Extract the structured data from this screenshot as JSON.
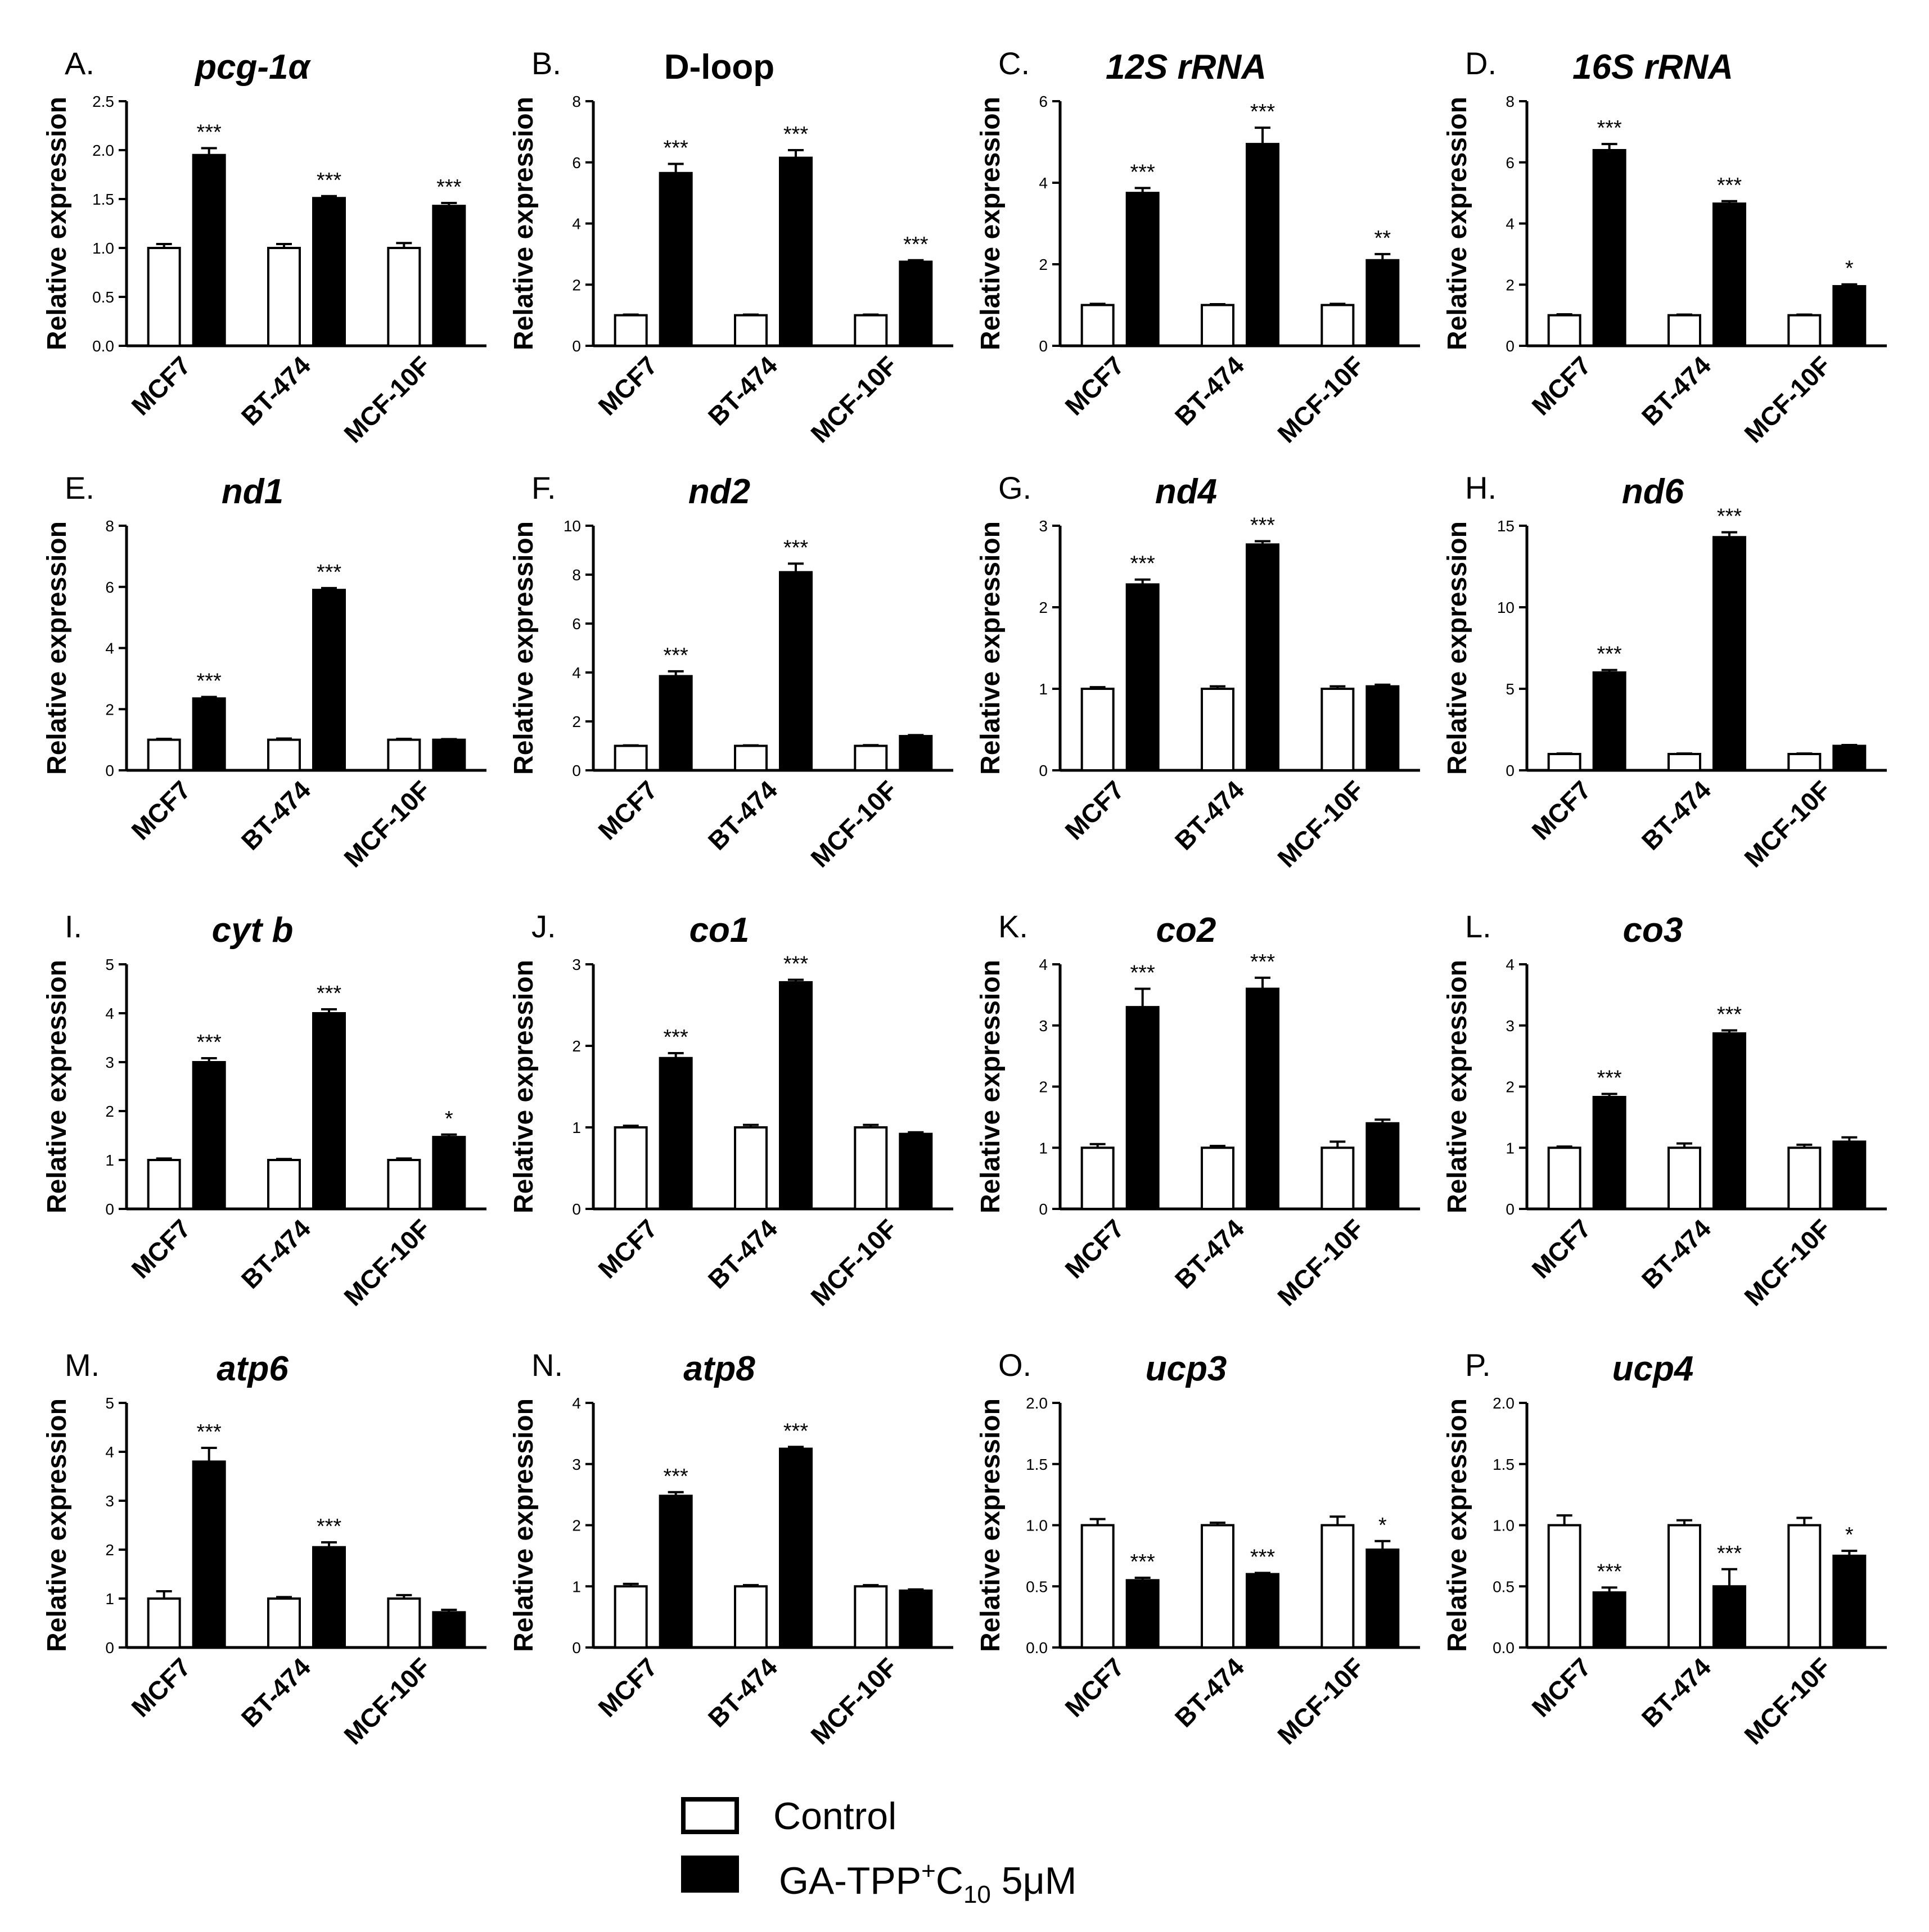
{
  "figure": {
    "legend": {
      "control_label": "Control",
      "treated_prefix": "GA-TPP",
      "treated_sup": "+",
      "treated_mid": "C",
      "treated_sub": "10",
      "treated_suffix": " 5μM"
    }
  },
  "chart_data": [
    {
      "type": "bar",
      "panel": "A.",
      "title": "pcg-1α",
      "title_italic": true,
      "ylabel": "Relative expression",
      "ylim": [
        0,
        2.5
      ],
      "ticks": [
        "0.0",
        "0.5",
        "1.0",
        "1.5",
        "2.0",
        "2.5"
      ],
      "categories": [
        "MCF7",
        "BT-474",
        "MCF-10F"
      ],
      "series": [
        {
          "name": "Control",
          "values": [
            1.0,
            1.0,
            1.0
          ],
          "errors": [
            0.04,
            0.04,
            0.05
          ]
        },
        {
          "name": "GA-TPP+C10 5μM",
          "values": [
            1.95,
            1.51,
            1.43
          ],
          "errors": [
            0.07,
            0.02,
            0.03
          ]
        }
      ],
      "significance": [
        "***",
        "***",
        "***"
      ]
    },
    {
      "type": "bar",
      "panel": "B.",
      "title": "D-loop",
      "title_italic": false,
      "ylabel": "Relative expression",
      "ylim": [
        0,
        8
      ],
      "ticks": [
        "0",
        "2",
        "4",
        "6",
        "8"
      ],
      "categories": [
        "MCF7",
        "BT-474",
        "MCF-10F"
      ],
      "series": [
        {
          "name": "Control",
          "values": [
            1.0,
            1.0,
            1.0
          ],
          "errors": [
            0.02,
            0.02,
            0.02
          ]
        },
        {
          "name": "GA-TPP+C10 5μM",
          "values": [
            5.65,
            6.15,
            2.75
          ],
          "errors": [
            0.3,
            0.25,
            0.05
          ]
        }
      ],
      "significance": [
        "***",
        "***",
        "***"
      ]
    },
    {
      "type": "bar",
      "panel": "C.",
      "title": "12S rRNA",
      "title_italic": true,
      "ylabel": "Relative expression",
      "ylim": [
        0,
        6
      ],
      "ticks": [
        "0",
        "2",
        "4",
        "6"
      ],
      "categories": [
        "MCF7",
        "BT-474",
        "MCF-10F"
      ],
      "series": [
        {
          "name": "Control",
          "values": [
            1.0,
            1.0,
            1.0
          ],
          "errors": [
            0.03,
            0.02,
            0.03
          ]
        },
        {
          "name": "GA-TPP+C10 5μM",
          "values": [
            3.75,
            4.95,
            2.1
          ],
          "errors": [
            0.12,
            0.4,
            0.15
          ]
        }
      ],
      "significance": [
        "***",
        "***",
        "**"
      ]
    },
    {
      "type": "bar",
      "panel": "D.",
      "title": "16S rRNA",
      "title_italic": true,
      "ylabel": "Relative expression",
      "ylim": [
        0,
        8
      ],
      "ticks": [
        "0",
        "2",
        "4",
        "6",
        "8"
      ],
      "categories": [
        "MCF7",
        "BT-474",
        "MCF-10F"
      ],
      "series": [
        {
          "name": "Control",
          "values": [
            1.0,
            1.0,
            1.0
          ],
          "errors": [
            0.03,
            0.02,
            0.02
          ]
        },
        {
          "name": "GA-TPP+C10 5μM",
          "values": [
            6.4,
            4.65,
            1.95
          ],
          "errors": [
            0.2,
            0.08,
            0.06
          ]
        }
      ],
      "significance": [
        "***",
        "***",
        "*"
      ]
    },
    {
      "type": "bar",
      "panel": "E.",
      "title": "nd1",
      "title_italic": true,
      "ylabel": "Relative expression",
      "ylim": [
        0,
        8
      ],
      "ticks": [
        "0",
        "2",
        "4",
        "6",
        "8"
      ],
      "categories": [
        "MCF7",
        "BT-474",
        "MCF-10F"
      ],
      "series": [
        {
          "name": "Control",
          "values": [
            1.0,
            1.0,
            1.0
          ],
          "errors": [
            0.03,
            0.04,
            0.03
          ]
        },
        {
          "name": "GA-TPP+C10 5μM",
          "values": [
            2.35,
            5.9,
            1.0
          ],
          "errors": [
            0.05,
            0.06,
            0.02
          ]
        }
      ],
      "significance": [
        "***",
        "***",
        ""
      ]
    },
    {
      "type": "bar",
      "panel": "F.",
      "title": "nd2",
      "title_italic": true,
      "ylabel": "Relative expression",
      "ylim": [
        0,
        10
      ],
      "ticks": [
        "0",
        "2",
        "4",
        "6",
        "8",
        "10"
      ],
      "categories": [
        "MCF7",
        "BT-474",
        "MCF-10F"
      ],
      "series": [
        {
          "name": "Control",
          "values": [
            1.0,
            1.0,
            1.0
          ],
          "errors": [
            0.02,
            0.02,
            0.03
          ]
        },
        {
          "name": "GA-TPP+C10 5μM",
          "values": [
            3.85,
            8.1,
            1.4
          ],
          "errors": [
            0.2,
            0.35,
            0.04
          ]
        }
      ],
      "significance": [
        "***",
        "***",
        ""
      ]
    },
    {
      "type": "bar",
      "panel": "G.",
      "title": "nd4",
      "title_italic": true,
      "ylabel": "Relative expression",
      "ylim": [
        0,
        3
      ],
      "ticks": [
        "0",
        "1",
        "2",
        "3"
      ],
      "categories": [
        "MCF7",
        "BT-474",
        "MCF-10F"
      ],
      "series": [
        {
          "name": "Control",
          "values": [
            1.0,
            1.0,
            1.0
          ],
          "errors": [
            0.02,
            0.03,
            0.03
          ]
        },
        {
          "name": "GA-TPP+C10 5μM",
          "values": [
            2.28,
            2.77,
            1.03
          ],
          "errors": [
            0.06,
            0.04,
            0.02
          ]
        }
      ],
      "significance": [
        "***",
        "***",
        ""
      ]
    },
    {
      "type": "bar",
      "panel": "H.",
      "title": "nd6",
      "title_italic": true,
      "ylabel": "Relative expression",
      "ylim": [
        0,
        15
      ],
      "ticks": [
        "0",
        "5",
        "10",
        "15"
      ],
      "categories": [
        "MCF7",
        "BT-474",
        "MCF-10F"
      ],
      "series": [
        {
          "name": "Control",
          "values": [
            1.0,
            1.0,
            1.0
          ],
          "errors": [
            0.03,
            0.03,
            0.03
          ]
        },
        {
          "name": "GA-TPP+C10 5μM",
          "values": [
            6.0,
            14.3,
            1.5
          ],
          "errors": [
            0.15,
            0.3,
            0.05
          ]
        }
      ],
      "significance": [
        "***",
        "***",
        ""
      ]
    },
    {
      "type": "bar",
      "panel": "I.",
      "title": "cyt b",
      "title_italic": true,
      "ylabel": "Relative expression",
      "ylim": [
        0,
        5
      ],
      "ticks": [
        "0",
        "1",
        "2",
        "3",
        "4",
        "5"
      ],
      "categories": [
        "MCF7",
        "BT-474",
        "MCF-10F"
      ],
      "series": [
        {
          "name": "Control",
          "values": [
            1.0,
            1.0,
            1.0
          ],
          "errors": [
            0.03,
            0.02,
            0.03
          ]
        },
        {
          "name": "GA-TPP+C10 5μM",
          "values": [
            3.0,
            4.0,
            1.47
          ],
          "errors": [
            0.08,
            0.08,
            0.05
          ]
        }
      ],
      "significance": [
        "***",
        "***",
        "*"
      ]
    },
    {
      "type": "bar",
      "panel": "J.",
      "title": "co1",
      "title_italic": true,
      "ylabel": "Relative expression",
      "ylim": [
        0,
        3
      ],
      "ticks": [
        "0",
        "1",
        "2",
        "3"
      ],
      "categories": [
        "MCF7",
        "BT-474",
        "MCF-10F"
      ],
      "series": [
        {
          "name": "Control",
          "values": [
            1.0,
            1.0,
            1.0
          ],
          "errors": [
            0.02,
            0.03,
            0.03
          ]
        },
        {
          "name": "GA-TPP+C10 5μM",
          "values": [
            1.85,
            2.78,
            0.92
          ],
          "errors": [
            0.06,
            0.03,
            0.02
          ]
        }
      ],
      "significance": [
        "***",
        "***",
        ""
      ]
    },
    {
      "type": "bar",
      "panel": "K.",
      "title": "co2",
      "title_italic": true,
      "ylabel": "Relative expression",
      "ylim": [
        0,
        4
      ],
      "ticks": [
        "0",
        "1",
        "2",
        "3",
        "4"
      ],
      "categories": [
        "MCF7",
        "BT-474",
        "MCF-10F"
      ],
      "series": [
        {
          "name": "Control",
          "values": [
            1.0,
            1.0,
            1.0
          ],
          "errors": [
            0.06,
            0.03,
            0.1
          ]
        },
        {
          "name": "GA-TPP+C10 5μM",
          "values": [
            3.3,
            3.6,
            1.4
          ],
          "errors": [
            0.3,
            0.18,
            0.06
          ]
        }
      ],
      "significance": [
        "***",
        "***",
        ""
      ]
    },
    {
      "type": "bar",
      "panel": "L.",
      "title": "co3",
      "title_italic": true,
      "ylabel": "Relative expression",
      "ylim": [
        0,
        4
      ],
      "ticks": [
        "0",
        "1",
        "2",
        "3",
        "4"
      ],
      "categories": [
        "MCF7",
        "BT-474",
        "MCF-10F"
      ],
      "series": [
        {
          "name": "Control",
          "values": [
            1.0,
            1.0,
            1.0
          ],
          "errors": [
            0.02,
            0.07,
            0.05
          ]
        },
        {
          "name": "GA-TPP+C10 5μM",
          "values": [
            1.83,
            2.87,
            1.1
          ],
          "errors": [
            0.05,
            0.05,
            0.07
          ]
        }
      ],
      "significance": [
        "***",
        "***",
        ""
      ]
    },
    {
      "type": "bar",
      "panel": "M.",
      "title": "atp6",
      "title_italic": true,
      "ylabel": "Relative expression",
      "ylim": [
        0,
        5
      ],
      "ticks": [
        "0",
        "1",
        "2",
        "3",
        "4",
        "5"
      ],
      "categories": [
        "MCF7",
        "BT-474",
        "MCF-10F"
      ],
      "series": [
        {
          "name": "Control",
          "values": [
            1.0,
            1.0,
            1.0
          ],
          "errors": [
            0.15,
            0.03,
            0.07
          ]
        },
        {
          "name": "GA-TPP+C10 5μM",
          "values": [
            3.8,
            2.05,
            0.72
          ],
          "errors": [
            0.28,
            0.1,
            0.05
          ]
        }
      ],
      "significance": [
        "***",
        "***",
        ""
      ]
    },
    {
      "type": "bar",
      "panel": "N.",
      "title": "atp8",
      "title_italic": true,
      "ylabel": "Relative expression",
      "ylim": [
        0,
        4
      ],
      "ticks": [
        "0",
        "1",
        "2",
        "3",
        "4"
      ],
      "categories": [
        "MCF7",
        "BT-474",
        "MCF-10F"
      ],
      "series": [
        {
          "name": "Control",
          "values": [
            1.0,
            1.0,
            1.0
          ],
          "errors": [
            0.04,
            0.02,
            0.02
          ]
        },
        {
          "name": "GA-TPP+C10 5μM",
          "values": [
            2.48,
            3.25,
            0.93
          ],
          "errors": [
            0.06,
            0.03,
            0.02
          ]
        }
      ],
      "significance": [
        "***",
        "***",
        ""
      ]
    },
    {
      "type": "bar",
      "panel": "O.",
      "title": "ucp3",
      "title_italic": true,
      "ylabel": "Relative expression",
      "ylim": [
        0,
        2.0
      ],
      "ticks": [
        "0.0",
        "0.5",
        "1.0",
        "1.5",
        "2.0"
      ],
      "categories": [
        "MCF7",
        "BT-474",
        "MCF-10F"
      ],
      "series": [
        {
          "name": "Control",
          "values": [
            1.0,
            1.0,
            1.0
          ],
          "errors": [
            0.05,
            0.02,
            0.07
          ]
        },
        {
          "name": "GA-TPP+C10 5μM",
          "values": [
            0.55,
            0.6,
            0.8
          ],
          "errors": [
            0.02,
            0.01,
            0.07
          ]
        }
      ],
      "significance": [
        "***",
        "***",
        "*"
      ]
    },
    {
      "type": "bar",
      "panel": "P.",
      "title": "ucp4",
      "title_italic": true,
      "ylabel": "Relative expression",
      "ylim": [
        0,
        2.0
      ],
      "ticks": [
        "0.0",
        "0.5",
        "1.0",
        "1.5",
        "2.0"
      ],
      "categories": [
        "MCF7",
        "BT-474",
        "MCF-10F"
      ],
      "series": [
        {
          "name": "Control",
          "values": [
            1.0,
            1.0,
            1.0
          ],
          "errors": [
            0.08,
            0.04,
            0.06
          ]
        },
        {
          "name": "GA-TPP+C10 5μM",
          "values": [
            0.45,
            0.5,
            0.75
          ],
          "errors": [
            0.04,
            0.14,
            0.04
          ]
        }
      ],
      "significance": [
        "***",
        "***",
        "*"
      ]
    }
  ]
}
